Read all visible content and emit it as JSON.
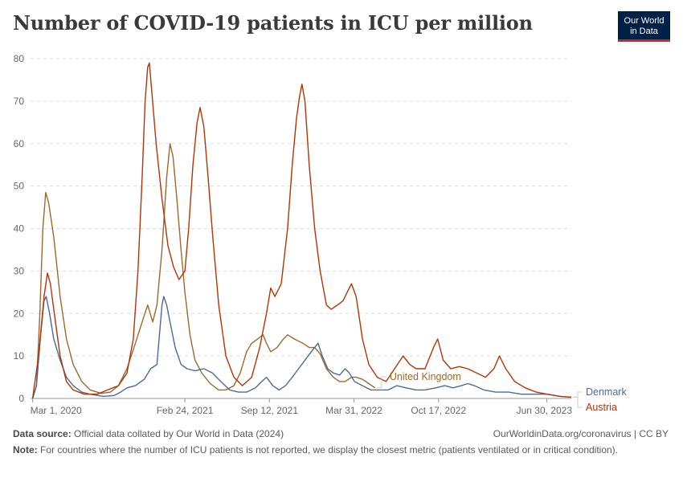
{
  "title": "Number of COVID-19 patients in ICU per million",
  "logo": {
    "line1": "Our World",
    "line2": "in Data",
    "bg": "#002147",
    "accent": "#ce261e"
  },
  "footer": {
    "source_label": "Data source:",
    "source_text": "Official data collated by Our World in Data (2024)",
    "link_text": "OurWorldinData.org/coronavirus | CC BY",
    "note_label": "Note:",
    "note_text": "For countries where the number of ICU patients is not reported, we display the closest metric (patients ventilated or in critical condition)."
  },
  "chart_data": {
    "type": "line",
    "ylim": [
      0,
      80
    ],
    "yticks": [
      0,
      10,
      20,
      30,
      40,
      50,
      60,
      70,
      80
    ],
    "xlim": [
      "2020-02-25",
      "2023-08-27"
    ],
    "xticks": [
      {
        "date": "2020-03-01",
        "label": "Mar 1, 2020"
      },
      {
        "date": "2021-02-24",
        "label": "Feb 24, 2021"
      },
      {
        "date": "2021-09-12",
        "label": "Sep 12, 2021"
      },
      {
        "date": "2022-03-31",
        "label": "Mar 31, 2022"
      },
      {
        "date": "2022-10-17",
        "label": "Oct 17, 2022"
      },
      {
        "date": "2023-06-30",
        "label": "Jun 30, 2023"
      }
    ],
    "grid": true,
    "series": [
      {
        "name": "United Kingdom",
        "color": "#9a6a2f",
        "points": [
          [
            "2020-03-01",
            0
          ],
          [
            "2020-03-10",
            3
          ],
          [
            "2020-03-18",
            20
          ],
          [
            "2020-03-25",
            40
          ],
          [
            "2020-04-01",
            48.5
          ],
          [
            "2020-04-08",
            46
          ],
          [
            "2020-04-20",
            38
          ],
          [
            "2020-05-05",
            24
          ],
          [
            "2020-05-20",
            14
          ],
          [
            "2020-06-05",
            8
          ],
          [
            "2020-06-25",
            4
          ],
          [
            "2020-07-15",
            2
          ],
          [
            "2020-08-10",
            1.2
          ],
          [
            "2020-09-01",
            1.5
          ],
          [
            "2020-09-20",
            3
          ],
          [
            "2020-10-10",
            7
          ],
          [
            "2020-10-30",
            13
          ],
          [
            "2020-11-15",
            18
          ],
          [
            "2020-11-28",
            22
          ],
          [
            "2020-12-10",
            18
          ],
          [
            "2020-12-20",
            22
          ],
          [
            "2021-01-01",
            35
          ],
          [
            "2021-01-12",
            52
          ],
          [
            "2021-01-20",
            60
          ],
          [
            "2021-01-27",
            57
          ],
          [
            "2021-02-05",
            47
          ],
          [
            "2021-02-15",
            35
          ],
          [
            "2021-02-24",
            25
          ],
          [
            "2021-03-08",
            15
          ],
          [
            "2021-03-20",
            9
          ],
          [
            "2021-04-05",
            6
          ],
          [
            "2021-04-25",
            3.5
          ],
          [
            "2021-05-15",
            2
          ],
          [
            "2021-06-01",
            2
          ],
          [
            "2021-06-20",
            3
          ],
          [
            "2021-07-05",
            6
          ],
          [
            "2021-07-20",
            11
          ],
          [
            "2021-08-01",
            13
          ],
          [
            "2021-08-15",
            14
          ],
          [
            "2021-08-28",
            15
          ],
          [
            "2021-09-05",
            13
          ],
          [
            "2021-09-15",
            11
          ],
          [
            "2021-09-30",
            12
          ],
          [
            "2021-10-15",
            14
          ],
          [
            "2021-10-25",
            15
          ],
          [
            "2021-11-10",
            14
          ],
          [
            "2021-11-30",
            13
          ],
          [
            "2021-12-15",
            12
          ],
          [
            "2021-12-28",
            12
          ],
          [
            "2022-01-10",
            10.5
          ],
          [
            "2022-01-25",
            7
          ],
          [
            "2022-02-10",
            5
          ],
          [
            "2022-02-25",
            4
          ],
          [
            "2022-03-10",
            4
          ],
          [
            "2022-03-25",
            5
          ],
          [
            "2022-04-05",
            5
          ],
          [
            "2022-04-20",
            4.5
          ],
          [
            "2022-05-05",
            3.5
          ],
          [
            "2022-05-20",
            2.5
          ]
        ]
      },
      {
        "name": "Denmark",
        "color": "#4c6a9c",
        "points": [
          [
            "2020-03-01",
            0
          ],
          [
            "2020-03-10",
            3
          ],
          [
            "2020-03-20",
            15
          ],
          [
            "2020-03-28",
            23
          ],
          [
            "2020-04-02",
            24
          ],
          [
            "2020-04-10",
            20
          ],
          [
            "2020-04-20",
            14
          ],
          [
            "2020-05-05",
            9
          ],
          [
            "2020-05-20",
            5
          ],
          [
            "2020-06-05",
            3
          ],
          [
            "2020-06-25",
            1.5
          ],
          [
            "2020-07-15",
            1
          ],
          [
            "2020-08-15",
            0.5
          ],
          [
            "2020-09-10",
            0.7
          ],
          [
            "2020-09-25",
            1.5
          ],
          [
            "2020-10-10",
            2.5
          ],
          [
            "2020-10-30",
            3
          ],
          [
            "2020-11-20",
            4.5
          ],
          [
            "2020-12-05",
            7
          ],
          [
            "2020-12-20",
            8
          ],
          [
            "2021-01-01",
            22
          ],
          [
            "2021-01-05",
            24
          ],
          [
            "2021-01-12",
            22
          ],
          [
            "2021-01-20",
            18
          ],
          [
            "2021-02-01",
            12
          ],
          [
            "2021-02-15",
            8
          ],
          [
            "2021-03-01",
            7
          ],
          [
            "2021-03-20",
            6.5
          ],
          [
            "2021-04-10",
            7
          ],
          [
            "2021-04-30",
            6
          ],
          [
            "2021-05-20",
            4
          ],
          [
            "2021-06-10",
            2
          ],
          [
            "2021-07-01",
            1.5
          ],
          [
            "2021-07-20",
            1.5
          ],
          [
            "2021-08-10",
            2.5
          ],
          [
            "2021-08-25",
            4
          ],
          [
            "2021-09-05",
            5
          ],
          [
            "2021-09-20",
            3
          ],
          [
            "2021-10-05",
            2
          ],
          [
            "2021-10-20",
            3
          ],
          [
            "2021-11-05",
            5
          ],
          [
            "2021-11-20",
            7
          ],
          [
            "2021-12-05",
            9
          ],
          [
            "2021-12-20",
            11
          ],
          [
            "2022-01-05",
            13
          ],
          [
            "2022-01-15",
            10
          ],
          [
            "2022-01-28",
            7
          ],
          [
            "2022-02-10",
            6
          ],
          [
            "2022-02-25",
            5.5
          ],
          [
            "2022-03-10",
            7
          ],
          [
            "2022-03-20",
            6
          ],
          [
            "2022-04-01",
            4
          ],
          [
            "2022-04-20",
            3
          ],
          [
            "2022-05-10",
            2
          ],
          [
            "2022-06-01",
            2
          ],
          [
            "2022-06-20",
            2
          ],
          [
            "2022-07-10",
            3
          ],
          [
            "2022-08-01",
            2.5
          ],
          [
            "2022-08-25",
            2
          ],
          [
            "2022-09-15",
            2
          ],
          [
            "2022-10-10",
            2.5
          ],
          [
            "2022-11-01",
            3
          ],
          [
            "2022-11-20",
            2.5
          ],
          [
            "2022-12-10",
            3
          ],
          [
            "2022-12-25",
            3.5
          ],
          [
            "2023-01-10",
            3
          ],
          [
            "2023-02-01",
            2
          ],
          [
            "2023-03-01",
            1.5
          ],
          [
            "2023-04-01",
            1.5
          ],
          [
            "2023-05-01",
            1
          ],
          [
            "2023-06-01",
            1
          ],
          [
            "2023-07-01",
            1
          ],
          [
            "2023-08-01",
            0.5
          ],
          [
            "2023-08-27",
            0.3
          ]
        ]
      },
      {
        "name": "Austria",
        "color": "#b13507",
        "points": [
          [
            "2020-03-01",
            0
          ],
          [
            "2020-03-15",
            10
          ],
          [
            "2020-03-28",
            24
          ],
          [
            "2020-04-05",
            29.5
          ],
          [
            "2020-04-12",
            27
          ],
          [
            "2020-04-20",
            21
          ],
          [
            "2020-05-05",
            10
          ],
          [
            "2020-05-20",
            4
          ],
          [
            "2020-06-05",
            2
          ],
          [
            "2020-07-01",
            1
          ],
          [
            "2020-08-01",
            1
          ],
          [
            "2020-08-25",
            2
          ],
          [
            "2020-09-20",
            3
          ],
          [
            "2020-10-10",
            6
          ],
          [
            "2020-10-25",
            14
          ],
          [
            "2020-11-05",
            30
          ],
          [
            "2020-11-15",
            52
          ],
          [
            "2020-11-22",
            70
          ],
          [
            "2020-11-28",
            78
          ],
          [
            "2020-12-02",
            79
          ],
          [
            "2020-12-08",
            72
          ],
          [
            "2020-12-18",
            60
          ],
          [
            "2021-01-01",
            47
          ],
          [
            "2021-01-15",
            36
          ],
          [
            "2021-01-28",
            31
          ],
          [
            "2021-02-10",
            28
          ],
          [
            "2021-02-24",
            30
          ],
          [
            "2021-03-05",
            40
          ],
          [
            "2021-03-15",
            55
          ],
          [
            "2021-03-25",
            65
          ],
          [
            "2021-04-01",
            68.5
          ],
          [
            "2021-04-10",
            64
          ],
          [
            "2021-04-20",
            52
          ],
          [
            "2021-05-01",
            38
          ],
          [
            "2021-05-15",
            22
          ],
          [
            "2021-06-01",
            10
          ],
          [
            "2021-06-20",
            5
          ],
          [
            "2021-07-10",
            3
          ],
          [
            "2021-08-01",
            5
          ],
          [
            "2021-08-20",
            12
          ],
          [
            "2021-09-05",
            20
          ],
          [
            "2021-09-15",
            26
          ],
          [
            "2021-09-25",
            24
          ],
          [
            "2021-10-10",
            27
          ],
          [
            "2021-10-25",
            40
          ],
          [
            "2021-11-05",
            55
          ],
          [
            "2021-11-15",
            66
          ],
          [
            "2021-11-22",
            71
          ],
          [
            "2021-11-28",
            74
          ],
          [
            "2021-12-05",
            70
          ],
          [
            "2021-12-15",
            55
          ],
          [
            "2021-12-28",
            40
          ],
          [
            "2022-01-10",
            30
          ],
          [
            "2022-01-25",
            22
          ],
          [
            "2022-02-05",
            21
          ],
          [
            "2022-02-20",
            22
          ],
          [
            "2022-03-05",
            23
          ],
          [
            "2022-03-15",
            25
          ],
          [
            "2022-03-25",
            27
          ],
          [
            "2022-04-05",
            24
          ],
          [
            "2022-04-20",
            14
          ],
          [
            "2022-05-05",
            8
          ],
          [
            "2022-05-25",
            5
          ],
          [
            "2022-06-15",
            4
          ],
          [
            "2022-07-05",
            7
          ],
          [
            "2022-07-25",
            10
          ],
          [
            "2022-08-10",
            8
          ],
          [
            "2022-08-25",
            7
          ],
          [
            "2022-09-15",
            7
          ],
          [
            "2022-10-05",
            12
          ],
          [
            "2022-10-15",
            14
          ],
          [
            "2022-10-28",
            9
          ],
          [
            "2022-11-15",
            7
          ],
          [
            "2022-12-05",
            7.5
          ],
          [
            "2022-12-25",
            7
          ],
          [
            "2023-01-15",
            6
          ],
          [
            "2023-02-05",
            5
          ],
          [
            "2023-02-25",
            7
          ],
          [
            "2023-03-10",
            10
          ],
          [
            "2023-03-25",
            7
          ],
          [
            "2023-04-15",
            4
          ],
          [
            "2023-05-10",
            2.5
          ],
          [
            "2023-06-05",
            1.5
          ],
          [
            "2023-07-01",
            1
          ],
          [
            "2023-08-01",
            0.5
          ],
          [
            "2023-08-27",
            0.3
          ]
        ]
      }
    ]
  }
}
